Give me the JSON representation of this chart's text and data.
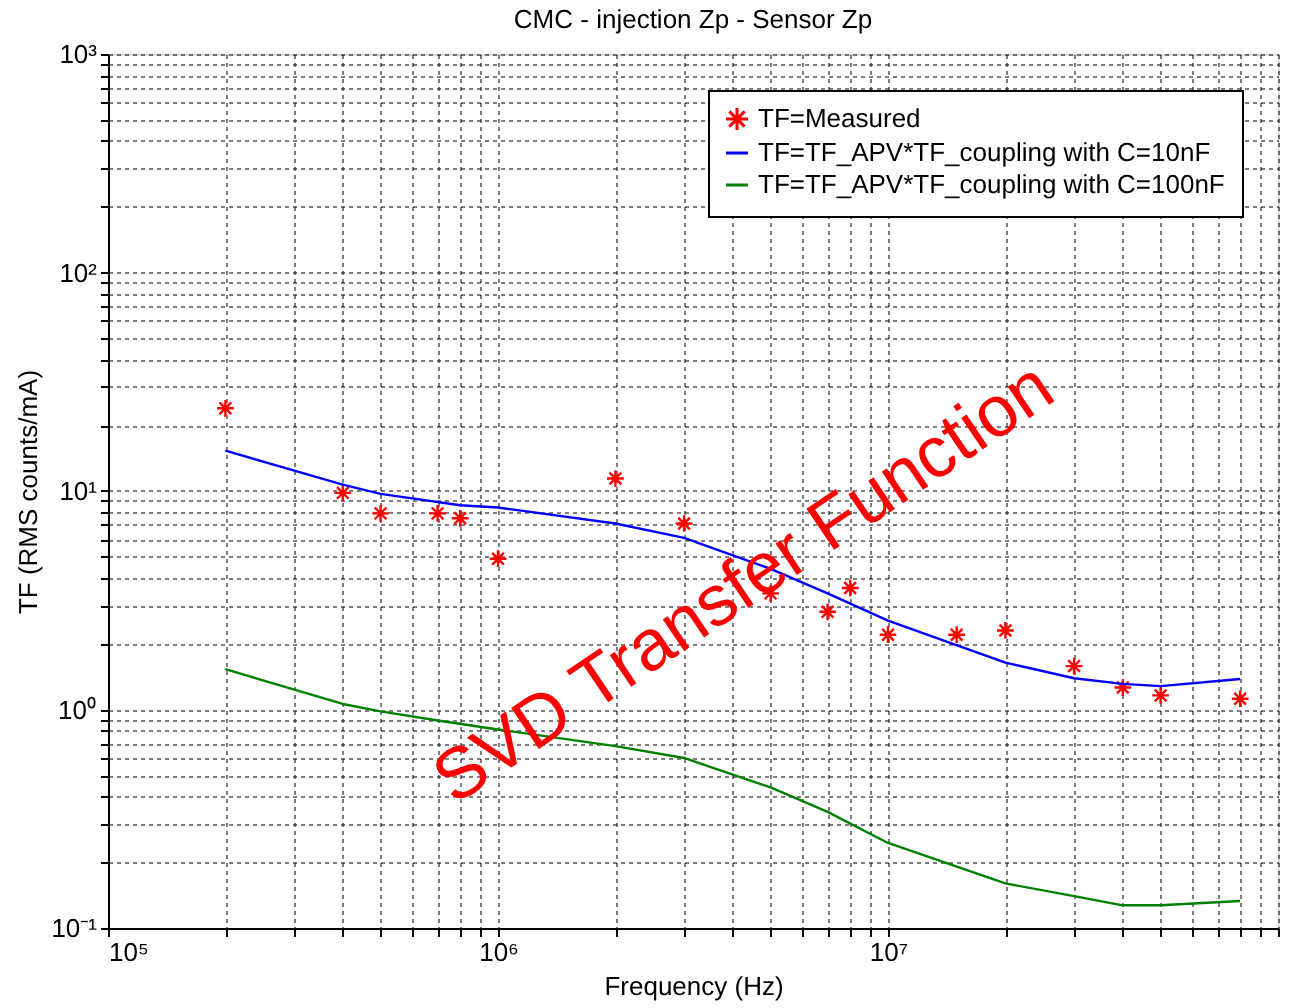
{
  "chart_data": {
    "type": "line",
    "title": "CMC - injection Zp - Sensor Zp",
    "xlabel": "Frequency (Hz)",
    "ylabel": "TF (RMS counts/mA)",
    "log": "xy",
    "grid": true,
    "legend": "top right",
    "xlim": [
      100000,
      100000000
    ],
    "ylim": [
      0.1,
      1000
    ],
    "xticks": [
      {
        "value": 100000,
        "label": "10⁵"
      },
      {
        "value": 200000,
        "label": null
      },
      {
        "value": 300000,
        "label": null
      },
      {
        "value": 400000,
        "label": null
      },
      {
        "value": 500000,
        "label": null
      },
      {
        "value": 600000,
        "label": null
      },
      {
        "value": 700000,
        "label": null
      },
      {
        "value": 800000,
        "label": null
      },
      {
        "value": 900000,
        "label": null
      },
      {
        "value": 1000000,
        "label": "10⁶"
      },
      {
        "value": 2000000,
        "label": null
      },
      {
        "value": 3000000,
        "label": null
      },
      {
        "value": 4000000,
        "label": null
      },
      {
        "value": 5000000,
        "label": null
      },
      {
        "value": 6000000,
        "label": null
      },
      {
        "value": 7000000,
        "label": null
      },
      {
        "value": 8000000,
        "label": null
      },
      {
        "value": 9000000,
        "label": null
      },
      {
        "value": 10000000,
        "label": "10⁷"
      },
      {
        "value": 20000000,
        "label": null
      },
      {
        "value": 30000000,
        "label": null
      },
      {
        "value": 40000000,
        "label": null
      },
      {
        "value": 50000000,
        "label": null
      },
      {
        "value": 60000000,
        "label": null
      },
      {
        "value": 70000000,
        "label": null
      },
      {
        "value": 80000000,
        "label": null
      },
      {
        "value": 90000000,
        "label": null
      },
      {
        "value": 100000000,
        "label": null
      }
    ],
    "yticks": [
      {
        "value": 0.1,
        "label": "10⁻¹"
      },
      {
        "value": 0.2,
        "label": null
      },
      {
        "value": 0.3,
        "label": null
      },
      {
        "value": 0.4,
        "label": null
      },
      {
        "value": 0.5,
        "label": null
      },
      {
        "value": 0.6,
        "label": null
      },
      {
        "value": 0.7,
        "label": null
      },
      {
        "value": 0.8,
        "label": null
      },
      {
        "value": 0.9,
        "label": null
      },
      {
        "value": 1,
        "label": "10⁰"
      },
      {
        "value": 2,
        "label": null
      },
      {
        "value": 3,
        "label": null
      },
      {
        "value": 4,
        "label": null
      },
      {
        "value": 5,
        "label": null
      },
      {
        "value": 6,
        "label": null
      },
      {
        "value": 7,
        "label": null
      },
      {
        "value": 8,
        "label": null
      },
      {
        "value": 9,
        "label": null
      },
      {
        "value": 10,
        "label": "10¹"
      },
      {
        "value": 20,
        "label": null
      },
      {
        "value": 30,
        "label": null
      },
      {
        "value": 40,
        "label": null
      },
      {
        "value": 50,
        "label": null
      },
      {
        "value": 60,
        "label": null
      },
      {
        "value": 70,
        "label": null
      },
      {
        "value": 80,
        "label": null
      },
      {
        "value": 90,
        "label": null
      },
      {
        "value": 100,
        "label": "10²"
      },
      {
        "value": 200,
        "label": null
      },
      {
        "value": 300,
        "label": null
      },
      {
        "value": 400,
        "label": null
      },
      {
        "value": 500,
        "label": null
      },
      {
        "value": 600,
        "label": null
      },
      {
        "value": 700,
        "label": null
      },
      {
        "value": 800,
        "label": null
      },
      {
        "value": 900,
        "label": null
      },
      {
        "value": 1000,
        "label": "10³"
      }
    ],
    "annotations": [
      "SVD Transfer Function"
    ],
    "series": [
      {
        "name": "TF=Measured",
        "type": "scatter",
        "marker": "cross",
        "color": "#ff0000",
        "x": [
          200000,
          400000,
          500000,
          700000,
          800000,
          1000000,
          2000000,
          3000000,
          5000000,
          7000000,
          8000000,
          10000000,
          15000000,
          20000000,
          30000000,
          40000000,
          50000000,
          80000000
        ],
        "values": [
          23.9,
          9.8,
          7.9,
          7.9,
          7.5,
          4.9,
          11.4,
          7.1,
          3.4,
          2.8,
          3.6,
          2.2,
          2.2,
          2.3,
          1.58,
          1.26,
          1.16,
          1.12
        ]
      },
      {
        "name": "TF=TF_APV*TF_coupling with C=10nF",
        "marker": "none",
        "line_style": "solid",
        "color": "#0000ff",
        "x": [
          200000,
          400000,
          500000,
          800000,
          1000000,
          2000000,
          3000000,
          5000000,
          7000000,
          10000000,
          20000000,
          30000000,
          40000000,
          50000000,
          80000000
        ],
        "values": [
          15.3,
          10.7,
          9.7,
          8.6,
          8.4,
          7.1,
          6.1,
          4.4,
          3.4,
          2.55,
          1.64,
          1.39,
          1.31,
          1.28,
          1.38
        ]
      },
      {
        "name": "TF=TF_APV*TF_coupling with C=100nF",
        "marker": "none",
        "line_style": "solid",
        "color": "#008000",
        "x": [
          200000,
          400000,
          500000,
          700000,
          1000000,
          2000000,
          3000000,
          5000000,
          7000000,
          10000000,
          20000000,
          30000000,
          40000000,
          50000000,
          80000000
        ],
        "values": [
          1.53,
          1.06,
          0.98,
          0.89,
          0.81,
          0.68,
          0.6,
          0.44,
          0.34,
          0.245,
          0.16,
          0.14,
          0.127,
          0.127,
          0.133
        ]
      }
    ]
  }
}
